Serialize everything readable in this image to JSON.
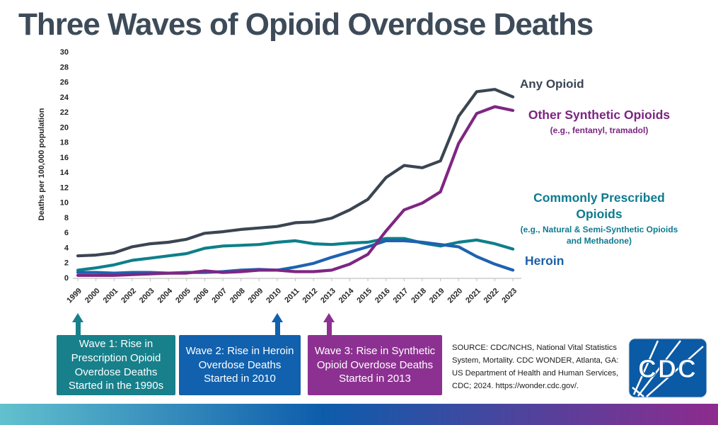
{
  "slide": {
    "title": "Three Waves of Opioid Overdose Deaths"
  },
  "chart_data": {
    "type": "line",
    "title": "Three Waves of Opioid Overdose Deaths",
    "xlabel": "",
    "ylabel": "Deaths per 100,000 population",
    "ylim": [
      0,
      30
    ],
    "ytick_step": 2,
    "grid": false,
    "legend_position": "right-inline",
    "x": [
      1999,
      2000,
      2001,
      2002,
      2003,
      2004,
      2005,
      2006,
      2007,
      2008,
      2009,
      2010,
      2011,
      2012,
      2013,
      2014,
      2015,
      2016,
      2017,
      2018,
      2019,
      2020,
      2021,
      2022,
      2023
    ],
    "series": [
      {
        "name": "Any Opioid",
        "color": "#3b4552",
        "values": [
          2.9,
          3.0,
          3.3,
          4.1,
          4.5,
          4.7,
          5.1,
          5.9,
          6.1,
          6.4,
          6.6,
          6.8,
          7.3,
          7.4,
          7.9,
          9.0,
          10.4,
          13.3,
          14.9,
          14.6,
          15.5,
          21.4,
          24.7,
          25.0,
          24.0
        ]
      },
      {
        "name": "Other Synthetic Opioids",
        "color": "#7e2683",
        "values": [
          0.3,
          0.3,
          0.3,
          0.4,
          0.5,
          0.6,
          0.6,
          0.9,
          0.7,
          0.8,
          1.0,
          1.0,
          0.8,
          0.8,
          1.0,
          1.8,
          3.1,
          6.2,
          9.0,
          9.9,
          11.4,
          17.8,
          21.8,
          22.7,
          22.2
        ]
      },
      {
        "name": "Commonly Prescribed Opioids",
        "color": "#0e7f8a",
        "values": [
          1.0,
          1.3,
          1.7,
          2.3,
          2.6,
          2.9,
          3.2,
          3.9,
          4.2,
          4.3,
          4.4,
          4.7,
          4.9,
          4.5,
          4.4,
          4.6,
          4.7,
          5.2,
          5.2,
          4.6,
          4.2,
          4.7,
          5.0,
          4.5,
          3.8
        ]
      },
      {
        "name": "Heroin",
        "color": "#1e62b0",
        "values": [
          0.7,
          0.7,
          0.6,
          0.7,
          0.7,
          0.6,
          0.7,
          0.7,
          0.8,
          1.0,
          1.1,
          1.0,
          1.4,
          1.9,
          2.7,
          3.4,
          4.1,
          4.9,
          4.9,
          4.7,
          4.4,
          4.1,
          2.8,
          1.8,
          1.0
        ]
      }
    ]
  },
  "legend": {
    "any_opioid": {
      "label": "Any Opioid",
      "color": "#3b4552"
    },
    "other_synthetic": {
      "label": "Other Synthetic Opioids",
      "sublabel": "(e.g., fentanyl, tramadol)",
      "color": "#7c2482"
    },
    "commonly_prescribed": {
      "label": "Commonly Prescribed Opioids",
      "sublabel": "(e.g., Natural & Semi-Synthetic Opioids and Methadone)",
      "color": "#0e7b8f"
    },
    "heroin": {
      "label": "Heroin",
      "color": "#1d5fa9"
    }
  },
  "waves": [
    {
      "color": "#17808b",
      "lines": [
        "Wave 1: Rise in",
        "Prescription Opioid",
        "Overdose Deaths",
        "Started in the 1990s"
      ]
    },
    {
      "color": "#1161ae",
      "lines": [
        "Wave 2: Rise in Heroin",
        "Overdose Deaths",
        "Started in 2010"
      ]
    },
    {
      "color": "#8c3191",
      "lines": [
        "Wave 3: Rise in Synthetic",
        "Opioid Overdose Deaths",
        "Started in 2013"
      ]
    }
  ],
  "source_note": "SOURCE: CDC/NCHS, National Vital Statistics System, Mortality. CDC WONDER, Atlanta, GA: US Department of Health and Human Services, CDC; 2024. https://wonder.cdc.gov/.",
  "logo": {
    "text": "CDC",
    "color": "#0b5aa5"
  },
  "footer_gradient": [
    "#62c1ce",
    "#0d5cab",
    "#8e2b8e"
  ]
}
